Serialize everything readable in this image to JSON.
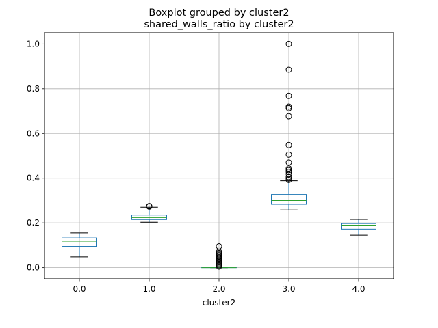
{
  "chart_data": {
    "type": "boxplot",
    "suptitle": "Boxplot grouped by cluster2",
    "title": "shared_walls_ratio by cluster2",
    "xlabel": "cluster2",
    "ylabel": "",
    "ylim": [
      -0.05,
      1.05
    ],
    "yticks": [
      0.0,
      0.2,
      0.4,
      0.6,
      0.8,
      1.0
    ],
    "ytick_labels": [
      "0.0",
      "0.2",
      "0.4",
      "0.6",
      "0.8",
      "1.0"
    ],
    "grid": true,
    "categories": [
      "0.0",
      "1.0",
      "2.0",
      "3.0",
      "4.0"
    ],
    "boxes": [
      {
        "category": "0.0",
        "whisker_low": 0.048,
        "q1": 0.095,
        "median": 0.118,
        "q3": 0.133,
        "whisker_high": 0.155,
        "outliers": []
      },
      {
        "category": "1.0",
        "whisker_low": 0.203,
        "q1": 0.215,
        "median": 0.224,
        "q3": 0.235,
        "whisker_high": 0.27,
        "outliers": [
          0.273,
          0.275
        ]
      },
      {
        "category": "2.0",
        "whisker_low": 0.0,
        "q1": 0.0,
        "median": 0.0,
        "q3": 0.0,
        "whisker_high": 0.0,
        "outliers": [
          0.005,
          0.01,
          0.015,
          0.02,
          0.025,
          0.03,
          0.035,
          0.04,
          0.045,
          0.05,
          0.055,
          0.06,
          0.065,
          0.07,
          0.095
        ]
      },
      {
        "category": "3.0",
        "whisker_low": 0.258,
        "q1": 0.283,
        "median": 0.3,
        "q3": 0.327,
        "whisker_high": 0.388,
        "outliers": [
          0.392,
          0.398,
          0.405,
          0.418,
          0.428,
          0.436,
          0.443,
          0.47,
          0.505,
          0.548,
          0.677,
          0.713,
          0.72,
          0.768,
          0.885,
          1.0
        ]
      },
      {
        "category": "4.0",
        "whisker_low": 0.145,
        "q1": 0.172,
        "median": 0.19,
        "q3": 0.197,
        "whisker_high": 0.216,
        "outliers": []
      }
    ],
    "colors": {
      "box": "#1f77b4",
      "median": "#2ca02c",
      "whisker": "#000000",
      "grid": "#b0b0b0",
      "frame": "#000000"
    }
  }
}
